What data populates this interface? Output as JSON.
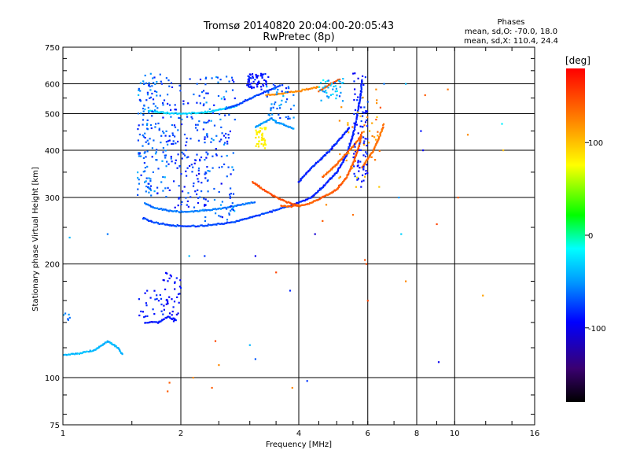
{
  "header": {
    "title": "Tromsø 20140820 20:04:00-20:05:43",
    "subtitle": "RwPretec (8p)"
  },
  "stats": {
    "heading": "Phases",
    "line_o": "mean, sd,O: -70.0, 18.0",
    "line_x": "mean, sd,X: 110.4, 24.4"
  },
  "chart_data": {
    "type": "scatter",
    "xlabel": "Frequency [MHz]",
    "ylabel": "Stationary phase Virtual Height [km]",
    "x_scale": "log",
    "y_scale": "log",
    "xlim": [
      1,
      16
    ],
    "ylim": [
      75,
      750
    ],
    "x_ticks": [
      1,
      2,
      4,
      6,
      8,
      10,
      16
    ],
    "y_ticks": [
      75,
      100,
      200,
      300,
      400,
      500,
      600,
      750
    ],
    "grid": true,
    "colorbar": {
      "label": "[deg]",
      "min": -180,
      "max": 180,
      "ticks": [
        -100,
        0,
        100
      ],
      "colors": [
        "#000000",
        "#3a0070",
        "#0000ff",
        "#0099ff",
        "#00ffff",
        "#00ff00",
        "#ffff00",
        "#ff8800",
        "#ff0000"
      ]
    },
    "traces": [
      {
        "x": [
          1.6,
          1.7,
          1.85,
          2.0,
          2.2,
          2.5,
          2.8,
          3.1,
          3.4,
          3.7,
          3.95
        ],
        "y": [
          265,
          258,
          254,
          252,
          252,
          255,
          260,
          268,
          275,
          283,
          288
        ],
        "phase": -75
      },
      {
        "x": [
          1.62,
          1.7,
          1.85,
          2.0,
          2.2,
          2.5,
          2.8,
          3.1
        ],
        "y": [
          290,
          282,
          277,
          275,
          276,
          280,
          286,
          292
        ],
        "phase": -60
      },
      {
        "x": [
          3.05,
          3.2,
          3.4,
          3.6,
          3.8,
          4.0
        ],
        "y": [
          330,
          318,
          306,
          296,
          290,
          286
        ],
        "phase": 145
      },
      {
        "x": [
          3.6,
          3.8,
          4.0,
          4.3,
          4.6,
          5.0,
          5.3,
          5.5,
          5.7,
          5.8
        ],
        "y": [
          285,
          284,
          285,
          290,
          300,
          315,
          340,
          370,
          410,
          450
        ],
        "phase": 140
      },
      {
        "x": [
          3.95,
          4.3,
          4.6,
          5.0,
          5.3,
          5.5,
          5.65,
          5.75,
          5.8
        ],
        "y": [
          290,
          300,
          320,
          350,
          390,
          440,
          500,
          560,
          620
        ],
        "phase": -85
      },
      {
        "x": [
          1.65,
          1.8,
          2.0,
          2.2,
          2.4,
          2.6,
          2.8
        ],
        "y": [
          510,
          503,
          500,
          502,
          508,
          516,
          525
        ],
        "phase": -30
      },
      {
        "x": [
          2.6,
          2.8,
          3.0,
          3.2,
          3.4,
          3.6
        ],
        "y": [
          515,
          530,
          548,
          565,
          580,
          595
        ],
        "phase": -75
      },
      {
        "x": [
          3.3,
          3.6,
          3.9,
          4.2,
          4.5
        ],
        "y": [
          560,
          565,
          572,
          580,
          590
        ],
        "phase": 120
      },
      {
        "x": [
          4.5,
          4.7,
          4.9,
          5.1
        ],
        "y": [
          575,
          590,
          605,
          620
        ],
        "phase": 140
      },
      {
        "x": [
          4.0,
          4.2,
          4.5,
          4.8,
          5.1,
          5.4
        ],
        "y": [
          330,
          350,
          375,
          400,
          430,
          460
        ],
        "phase": -85
      },
      {
        "x": [
          4.6,
          4.9,
          5.2,
          5.5,
          5.8
        ],
        "y": [
          340,
          360,
          385,
          410,
          440
        ],
        "phase": 135
      },
      {
        "x": [
          5.8,
          6.0,
          6.2,
          6.4,
          6.6
        ],
        "y": [
          360,
          380,
          400,
          430,
          470
        ],
        "phase": 130
      },
      {
        "x": [
          3.1,
          3.2,
          3.3,
          3.4,
          3.5,
          3.7,
          3.9
        ],
        "y": [
          460,
          470,
          478,
          485,
          475,
          465,
          455
        ],
        "phase": -50
      },
      {
        "x": [
          1.0,
          1.1,
          1.2,
          1.3,
          1.38,
          1.42
        ],
        "y": [
          115,
          116,
          118,
          125,
          120,
          115
        ],
        "phase": -40
      },
      {
        "x": [
          1.62,
          1.75,
          1.85,
          1.95
        ],
        "y": [
          140,
          140,
          145,
          142
        ],
        "phase": -90
      }
    ],
    "clusters": [
      {
        "x": [
          1.55,
          1.85
        ],
        "y": [
          300,
          640
        ],
        "n": 170,
        "phase": -65,
        "spread": 35
      },
      {
        "x": [
          1.85,
          2.35
        ],
        "y": [
          280,
          620
        ],
        "n": 150,
        "phase": -80,
        "spread": 30
      },
      {
        "x": [
          2.3,
          2.75
        ],
        "y": [
          260,
          630
        ],
        "n": 110,
        "phase": -70,
        "spread": 40
      },
      {
        "x": [
          2.95,
          3.35
        ],
        "y": [
          580,
          640
        ],
        "n": 60,
        "phase": -90,
        "spread": 15
      },
      {
        "x": [
          3.1,
          3.3
        ],
        "y": [
          405,
          460
        ],
        "n": 45,
        "phase": 80,
        "spread": 12
      },
      {
        "x": [
          3.3,
          3.9
        ],
        "y": [
          480,
          600
        ],
        "n": 45,
        "phase": -60,
        "spread": 40
      },
      {
        "x": [
          4.5,
          5.2
        ],
        "y": [
          540,
          620
        ],
        "n": 40,
        "phase": -40,
        "spread": 50
      },
      {
        "x": [
          5.5,
          6.0
        ],
        "y": [
          320,
          640
        ],
        "n": 80,
        "phase": -90,
        "spread": 25
      },
      {
        "x": [
          5.0,
          6.5
        ],
        "y": [
          320,
          560
        ],
        "n": 40,
        "phase": 110,
        "spread": 40
      },
      {
        "x": [
          1.8,
          2.0
        ],
        "y": [
          140,
          190
        ],
        "n": 40,
        "phase": -95,
        "spread": 15
      },
      {
        "x": [
          1.55,
          1.8
        ],
        "y": [
          140,
          170
        ],
        "n": 25,
        "phase": -85,
        "spread": 15
      },
      {
        "x": [
          1.0,
          1.05
        ],
        "y": [
          140,
          150
        ],
        "n": 6,
        "phase": -60,
        "spread": 20
      }
    ],
    "scattered_points": [
      {
        "x": 1.04,
        "y": 235,
        "phase": -40
      },
      {
        "x": 1.3,
        "y": 240,
        "phase": -60
      },
      {
        "x": 1.85,
        "y": 92,
        "phase": 140
      },
      {
        "x": 1.87,
        "y": 97,
        "phase": 140
      },
      {
        "x": 2.15,
        "y": 100,
        "phase": 120
      },
      {
        "x": 2.4,
        "y": 94,
        "phase": 140
      },
      {
        "x": 2.45,
        "y": 125,
        "phase": 150
      },
      {
        "x": 2.5,
        "y": 108,
        "phase": 120
      },
      {
        "x": 2.1,
        "y": 210,
        "phase": -40
      },
      {
        "x": 2.3,
        "y": 210,
        "phase": -80
      },
      {
        "x": 3.0,
        "y": 122,
        "phase": -40
      },
      {
        "x": 3.1,
        "y": 210,
        "phase": -100
      },
      {
        "x": 3.1,
        "y": 112,
        "phase": -70
      },
      {
        "x": 3.5,
        "y": 190,
        "phase": 150
      },
      {
        "x": 3.8,
        "y": 170,
        "phase": -85
      },
      {
        "x": 3.85,
        "y": 94,
        "phase": 120
      },
      {
        "x": 4.2,
        "y": 98,
        "phase": -80
      },
      {
        "x": 4.4,
        "y": 240,
        "phase": -110
      },
      {
        "x": 4.6,
        "y": 260,
        "phase": 140
      },
      {
        "x": 4.7,
        "y": 287,
        "phase": 120
      },
      {
        "x": 5.5,
        "y": 270,
        "phase": 130
      },
      {
        "x": 5.6,
        "y": 320,
        "phase": 100
      },
      {
        "x": 5.9,
        "y": 205,
        "phase": 145
      },
      {
        "x": 5.95,
        "y": 200,
        "phase": 150
      },
      {
        "x": 6.0,
        "y": 160,
        "phase": 150
      },
      {
        "x": 6.3,
        "y": 580,
        "phase": 120
      },
      {
        "x": 6.6,
        "y": 600,
        "phase": -60
      },
      {
        "x": 7.2,
        "y": 300,
        "phase": -50
      },
      {
        "x": 7.3,
        "y": 240,
        "phase": -30
      },
      {
        "x": 7.5,
        "y": 180,
        "phase": 120
      },
      {
        "x": 7.5,
        "y": 600,
        "phase": -40
      },
      {
        "x": 8.2,
        "y": 450,
        "phase": -90
      },
      {
        "x": 8.3,
        "y": 400,
        "phase": -100
      },
      {
        "x": 8.4,
        "y": 560,
        "phase": 140
      },
      {
        "x": 9.0,
        "y": 255,
        "phase": 150
      },
      {
        "x": 9.1,
        "y": 110,
        "phase": -100
      },
      {
        "x": 9.6,
        "y": 580,
        "phase": 130
      },
      {
        "x": 10.2,
        "y": 300,
        "phase": 140
      },
      {
        "x": 10.8,
        "y": 440,
        "phase": 120
      },
      {
        "x": 11.8,
        "y": 165,
        "phase": 110
      },
      {
        "x": 13.2,
        "y": 470,
        "phase": -20
      },
      {
        "x": 13.3,
        "y": 400,
        "phase": 100
      }
    ]
  }
}
